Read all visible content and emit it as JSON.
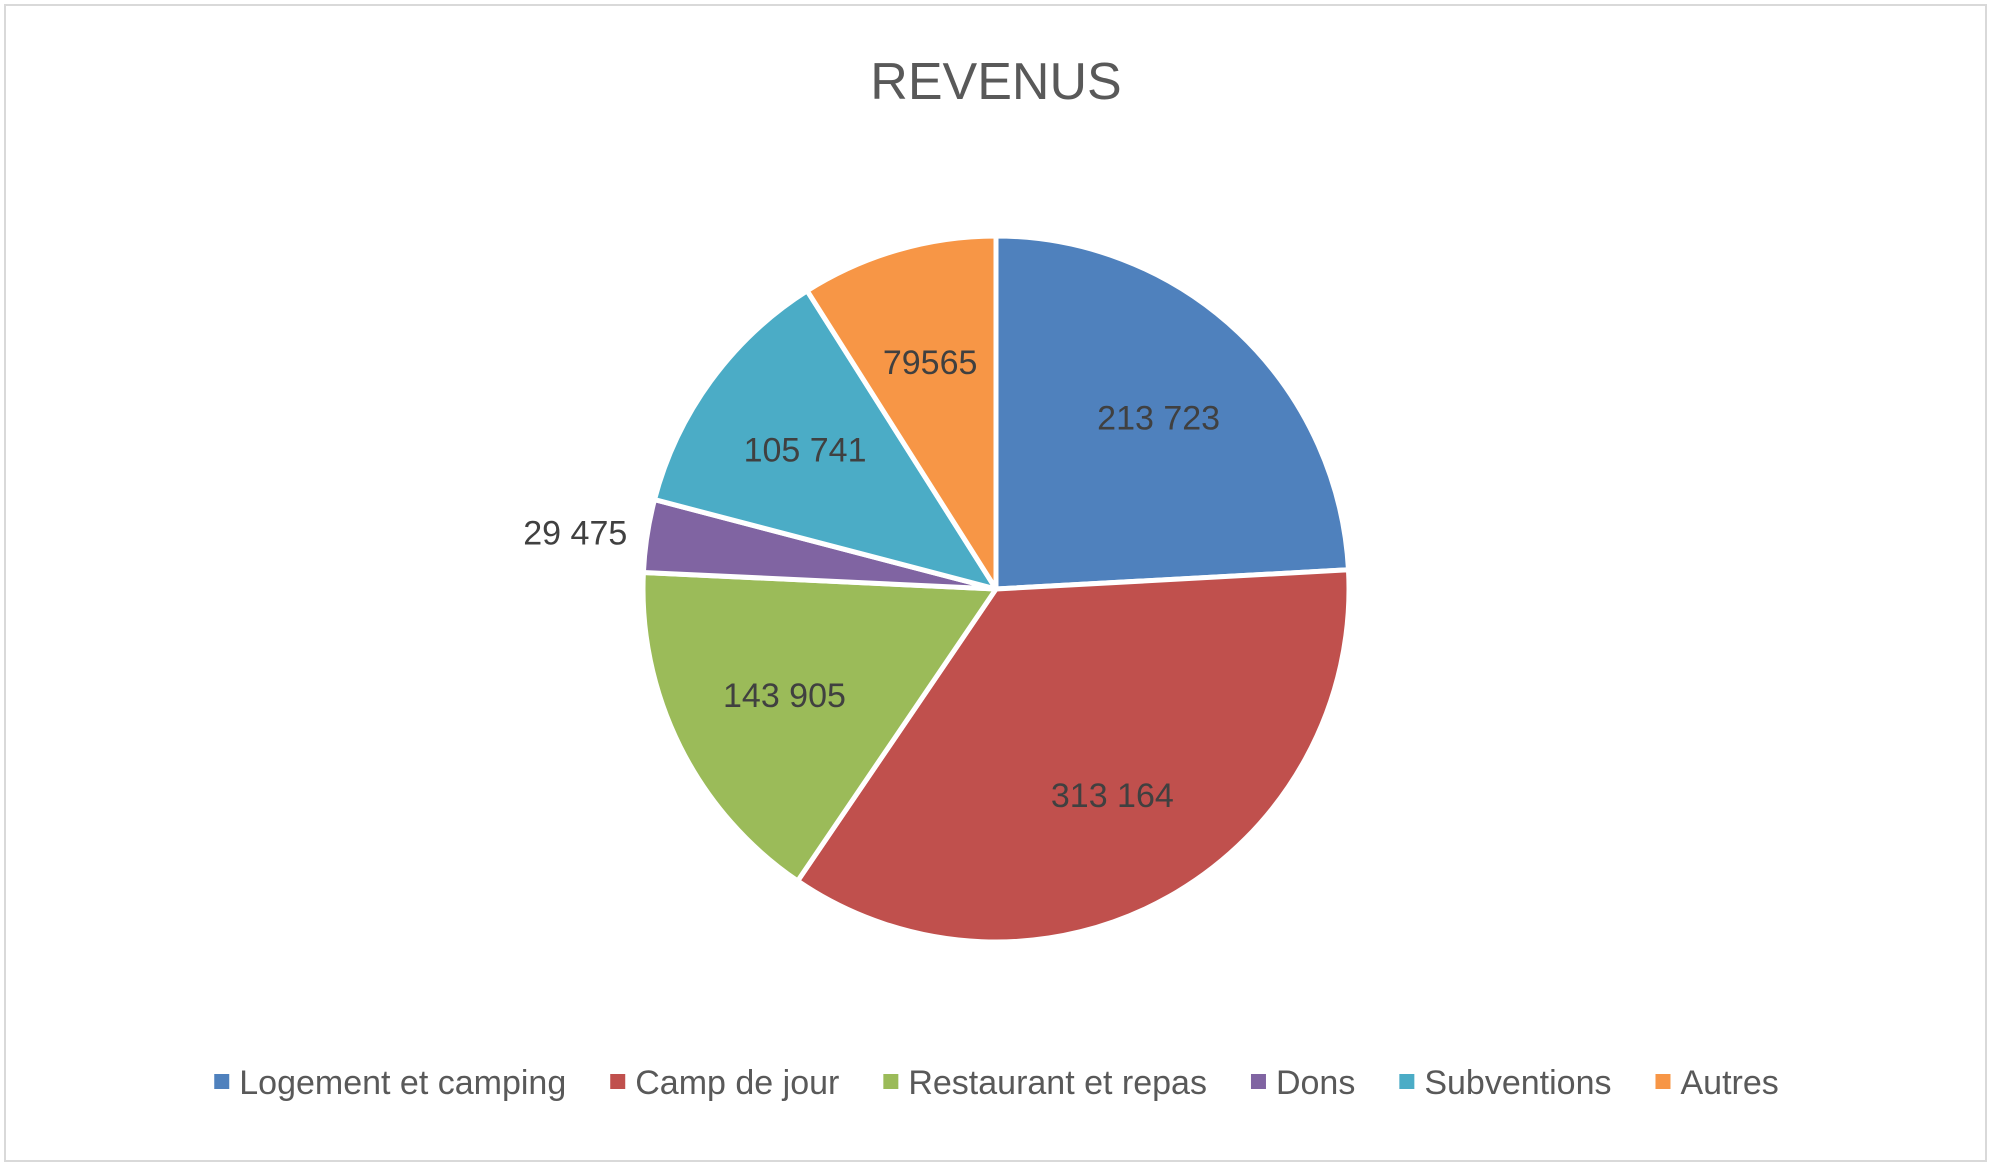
{
  "chart_data": {
    "type": "pie",
    "title": "REVENUS",
    "categories": [
      "Logement et camping",
      "Camp de jour",
      "Restaurant et repas",
      "Dons",
      "Subventions",
      "Autres"
    ],
    "values": [
      213723,
      313164,
      143905,
      29475,
      105741,
      79565
    ],
    "data_labels": [
      "213 723",
      "313 164",
      "143 905",
      "29 475",
      "105 741",
      "79565"
    ],
    "colors": [
      "#4f81bd",
      "#c0504d",
      "#9bbb59",
      "#8064a2",
      "#4bacc6",
      "#f79646"
    ],
    "start_angle_deg": 0,
    "direction": "clockwise",
    "legend_position": "bottom",
    "slice_border_color": "#ffffff"
  }
}
